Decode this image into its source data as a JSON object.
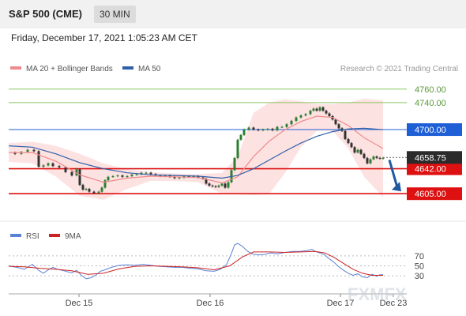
{
  "header": {
    "title": "S&P 500 (CME)",
    "interval": "30 MIN"
  },
  "timestamp": "Friday, December 17, 2021 1:05:23 AM CET",
  "credit": "Research © 2021 Trading Central",
  "watermark": "FXMFX",
  "colors": {
    "ma20": "#f08a8a",
    "ma50": "#2f5fa8",
    "support": "#dd1111",
    "pivot": "#1f5fd6",
    "resistance": "#88c860",
    "bull": "#2e7d32",
    "bear": "#333333",
    "band": "#fde0e0",
    "rsi": "#5b82d6",
    "rsi_ma": "#cc2222",
    "arrow": "#1f5aa0"
  },
  "chart_data": [
    {
      "type": "line",
      "title": "S&P 500 (CME) 30 MIN",
      "legend": [
        "MA 20 + Bollinger Bands",
        "MA 50"
      ],
      "x_ticks": [
        "Dec 15",
        "Dec 16",
        "Dec 17",
        "Dec 23"
      ],
      "ylim": [
        4590,
        4775
      ],
      "levels": [
        {
          "label": "4760.00",
          "value": 4760,
          "kind": "resistance"
        },
        {
          "label": "4740.00",
          "value": 4740,
          "kind": "resistance"
        },
        {
          "label": "4700.00",
          "value": 4700,
          "kind": "pivot"
        },
        {
          "label": "4642.00",
          "value": 4642,
          "kind": "support"
        },
        {
          "label": "4605.00",
          "value": 4605,
          "kind": "support"
        }
      ],
      "last_price": {
        "label": "4658.75",
        "value": 4658.75
      },
      "close_path": [
        [
          0,
          4666
        ],
        [
          8,
          4664
        ],
        [
          16,
          4667
        ],
        [
          24,
          4670
        ],
        [
          32,
          4668
        ],
        [
          38,
          4645
        ],
        [
          44,
          4647
        ],
        [
          50,
          4650
        ],
        [
          56,
          4646
        ],
        [
          64,
          4644
        ],
        [
          72,
          4637
        ],
        [
          80,
          4632
        ],
        [
          86,
          4641
        ],
        [
          90,
          4618
        ],
        [
          94,
          4611
        ],
        [
          98,
          4612
        ],
        [
          102,
          4608
        ],
        [
          108,
          4606
        ],
        [
          114,
          4608
        ],
        [
          118,
          4614
        ],
        [
          122,
          4625
        ],
        [
          126,
          4630
        ],
        [
          132,
          4631
        ],
        [
          138,
          4632
        ],
        [
          144,
          4630
        ],
        [
          150,
          4631
        ],
        [
          156,
          4633
        ],
        [
          162,
          4634
        ],
        [
          168,
          4636
        ],
        [
          174,
          4636
        ],
        [
          180,
          4634
        ],
        [
          186,
          4632
        ],
        [
          192,
          4631
        ],
        [
          198,
          4632
        ],
        [
          204,
          4630
        ],
        [
          210,
          4628
        ],
        [
          216,
          4629
        ],
        [
          222,
          4631
        ],
        [
          228,
          4630
        ],
        [
          234,
          4631
        ],
        [
          240,
          4629
        ],
        [
          246,
          4627
        ],
        [
          250,
          4620
        ],
        [
          254,
          4617
        ],
        [
          258,
          4616
        ],
        [
          262,
          4615
        ],
        [
          266,
          4617
        ],
        [
          270,
          4620
        ],
        [
          274,
          4614
        ],
        [
          278,
          4622
        ],
        [
          282,
          4640
        ],
        [
          286,
          4658
        ],
        [
          290,
          4685
        ],
        [
          294,
          4692
        ],
        [
          298,
          4700
        ],
        [
          304,
          4703
        ],
        [
          310,
          4700
        ],
        [
          316,
          4699
        ],
        [
          322,
          4700
        ],
        [
          328,
          4701
        ],
        [
          334,
          4699
        ],
        [
          340,
          4704
        ],
        [
          346,
          4704
        ],
        [
          352,
          4708
        ],
        [
          358,
          4713
        ],
        [
          364,
          4718
        ],
        [
          370,
          4721
        ],
        [
          376,
          4723
        ],
        [
          382,
          4728
        ],
        [
          386,
          4731
        ],
        [
          390,
          4728
        ],
        [
          394,
          4733
        ],
        [
          398,
          4728
        ],
        [
          402,
          4724
        ],
        [
          406,
          4720
        ],
        [
          410,
          4715
        ],
        [
          414,
          4708
        ],
        [
          418,
          4702
        ],
        [
          422,
          4698
        ],
        [
          426,
          4686
        ],
        [
          430,
          4680
        ],
        [
          434,
          4674
        ],
        [
          438,
          4666
        ],
        [
          442,
          4670
        ],
        [
          446,
          4664
        ],
        [
          450,
          4658
        ],
        [
          454,
          4650
        ],
        [
          458,
          4656
        ],
        [
          462,
          4660
        ],
        [
          466,
          4658
        ],
        [
          470,
          4657
        ],
        [
          474,
          4658
        ]
      ],
      "ma20_path": [
        [
          0,
          4666
        ],
        [
          30,
          4666
        ],
        [
          60,
          4653
        ],
        [
          90,
          4633
        ],
        [
          120,
          4622
        ],
        [
          150,
          4628
        ],
        [
          180,
          4631
        ],
        [
          210,
          4630
        ],
        [
          240,
          4629
        ],
        [
          270,
          4621
        ],
        [
          290,
          4630
        ],
        [
          310,
          4660
        ],
        [
          330,
          4683
        ],
        [
          350,
          4700
        ],
        [
          370,
          4712
        ],
        [
          390,
          4720
        ],
        [
          410,
          4718
        ],
        [
          430,
          4706
        ],
        [
          450,
          4688
        ],
        [
          474,
          4672
        ]
      ],
      "ma50_path": [
        [
          0,
          4676
        ],
        [
          30,
          4674
        ],
        [
          60,
          4664
        ],
        [
          90,
          4651
        ],
        [
          120,
          4642
        ],
        [
          150,
          4636
        ],
        [
          180,
          4633
        ],
        [
          210,
          4632
        ],
        [
          240,
          4631
        ],
        [
          270,
          4628
        ],
        [
          290,
          4632
        ],
        [
          310,
          4642
        ],
        [
          330,
          4655
        ],
        [
          350,
          4668
        ],
        [
          370,
          4680
        ],
        [
          390,
          4690
        ],
        [
          410,
          4697
        ],
        [
          430,
          4701
        ],
        [
          450,
          4702
        ],
        [
          474,
          4700
        ]
      ],
      "band_upper": [
        [
          0,
          4680
        ],
        [
          30,
          4682
        ],
        [
          60,
          4676
        ],
        [
          90,
          4664
        ],
        [
          120,
          4650
        ],
        [
          150,
          4641
        ],
        [
          180,
          4637
        ],
        [
          210,
          4635
        ],
        [
          240,
          4634
        ],
        [
          270,
          4636
        ],
        [
          290,
          4660
        ],
        [
          310,
          4725
        ],
        [
          330,
          4740
        ],
        [
          350,
          4745
        ],
        [
          370,
          4742
        ],
        [
          390,
          4738
        ],
        [
          410,
          4738
        ],
        [
          430,
          4740
        ],
        [
          450,
          4746
        ],
        [
          474,
          4743
        ]
      ],
      "band_lower": [
        [
          0,
          4652
        ],
        [
          30,
          4650
        ],
        [
          60,
          4630
        ],
        [
          90,
          4602
        ],
        [
          120,
          4596
        ],
        [
          150,
          4612
        ],
        [
          180,
          4624
        ],
        [
          210,
          4624
        ],
        [
          240,
          4622
        ],
        [
          270,
          4605
        ],
        [
          290,
          4605
        ],
        [
          310,
          4603
        ],
        [
          330,
          4605
        ],
        [
          350,
          4636
        ],
        [
          370,
          4674
        ],
        [
          390,
          4698
        ],
        [
          410,
          4698
        ],
        [
          430,
          4672
        ],
        [
          450,
          4630
        ],
        [
          474,
          4600
        ]
      ],
      "arrow_to": {
        "x": 500,
        "value": 4605
      }
    },
    {
      "type": "line",
      "title": "",
      "legend": [
        "RSI",
        "9MA"
      ],
      "y_ticks": [
        "70",
        "50",
        "30"
      ],
      "ylim": [
        0,
        100
      ],
      "rsi_path": [
        [
          0,
          50
        ],
        [
          10,
          47
        ],
        [
          20,
          43
        ],
        [
          30,
          53
        ],
        [
          38,
          41
        ],
        [
          44,
          35
        ],
        [
          50,
          42
        ],
        [
          56,
          47
        ],
        [
          62,
          43
        ],
        [
          70,
          40
        ],
        [
          80,
          36
        ],
        [
          86,
          41
        ],
        [
          92,
          31
        ],
        [
          98,
          24
        ],
        [
          104,
          26
        ],
        [
          110,
          31
        ],
        [
          116,
          39
        ],
        [
          122,
          42
        ],
        [
          130,
          47
        ],
        [
          140,
          51
        ],
        [
          150,
          52
        ],
        [
          160,
          51
        ],
        [
          170,
          53
        ],
        [
          180,
          51
        ],
        [
          190,
          49
        ],
        [
          200,
          48
        ],
        [
          210,
          47
        ],
        [
          220,
          47
        ],
        [
          230,
          45
        ],
        [
          240,
          44
        ],
        [
          250,
          40
        ],
        [
          260,
          39
        ],
        [
          268,
          43
        ],
        [
          276,
          53
        ],
        [
          282,
          75
        ],
        [
          286,
          92
        ],
        [
          290,
          95
        ],
        [
          296,
          89
        ],
        [
          302,
          80
        ],
        [
          308,
          74
        ],
        [
          316,
          72
        ],
        [
          324,
          73
        ],
        [
          332,
          76
        ],
        [
          340,
          74
        ],
        [
          350,
          77
        ],
        [
          360,
          79
        ],
        [
          370,
          79
        ],
        [
          378,
          81
        ],
        [
          384,
          83
        ],
        [
          388,
          79
        ],
        [
          394,
          76
        ],
        [
          400,
          72
        ],
        [
          406,
          64
        ],
        [
          412,
          57
        ],
        [
          418,
          48
        ],
        [
          424,
          41
        ],
        [
          430,
          35
        ],
        [
          436,
          31
        ],
        [
          442,
          34
        ],
        [
          448,
          28
        ],
        [
          454,
          26
        ],
        [
          460,
          33
        ],
        [
          466,
          29
        ],
        [
          470,
          32
        ],
        [
          474,
          32
        ]
      ],
      "rsi_ma_path": [
        [
          0,
          49
        ],
        [
          20,
          48
        ],
        [
          40,
          45
        ],
        [
          60,
          43
        ],
        [
          80,
          40
        ],
        [
          100,
          33
        ],
        [
          120,
          35
        ],
        [
          140,
          44
        ],
        [
          160,
          49
        ],
        [
          180,
          50
        ],
        [
          200,
          49
        ],
        [
          220,
          48
        ],
        [
          240,
          46
        ],
        [
          260,
          42
        ],
        [
          280,
          50
        ],
        [
          296,
          68
        ],
        [
          310,
          78
        ],
        [
          330,
          78
        ],
        [
          350,
          77
        ],
        [
          370,
          78
        ],
        [
          388,
          79
        ],
        [
          400,
          76
        ],
        [
          412,
          67
        ],
        [
          424,
          55
        ],
        [
          436,
          43
        ],
        [
          448,
          35
        ],
        [
          460,
          31
        ],
        [
          474,
          31
        ]
      ]
    }
  ]
}
